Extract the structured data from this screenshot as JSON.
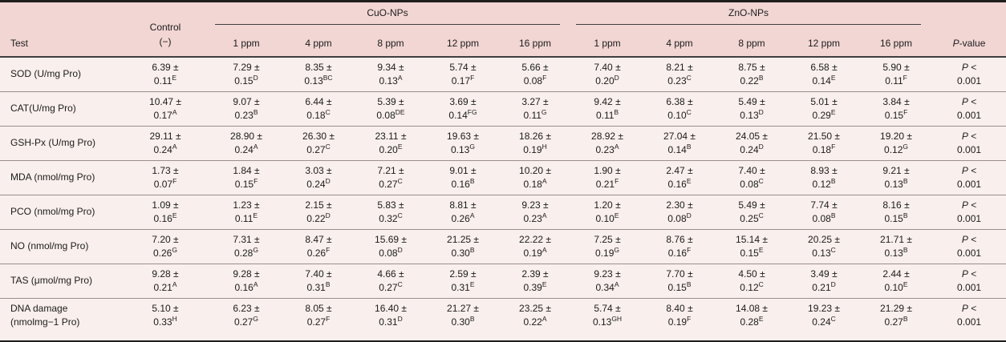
{
  "colors": {
    "header_bg": "#f1d6d3",
    "body_bg": "#f9efec",
    "rule_dark": "#1e1e1e",
    "rule_mid": "#3f3f3f",
    "rule_light": "#9a8f8d"
  },
  "table": {
    "header": {
      "test": "Test",
      "control_line1": "Control",
      "control_line2": "(−)",
      "groups": [
        {
          "label": "CuO-NPs",
          "cols": [
            "1 ppm",
            "4 ppm",
            "8 ppm",
            "12 ppm",
            "16 ppm"
          ]
        },
        {
          "label": "ZnO-NPs",
          "cols": [
            "1 ppm",
            "4 ppm",
            "8 ppm",
            "12 ppm",
            "16 ppm"
          ]
        }
      ],
      "pvalue": {
        "p": "P",
        "rest": "-value"
      }
    },
    "plus_minus": "±",
    "p_cell": {
      "p": "P",
      "lt": " <",
      "value": "0.001"
    },
    "rows": [
      {
        "label": "SOD (U/mg Pro)",
        "label2": "",
        "cells": [
          [
            "6.39",
            "0.11",
            "E"
          ],
          [
            "7.29",
            "0.15",
            "D"
          ],
          [
            "8.35",
            "0.13",
            "BC"
          ],
          [
            "9.34",
            "0.13",
            "A"
          ],
          [
            "5.74",
            "0.17",
            "F"
          ],
          [
            "5.66",
            "0.08",
            "F"
          ],
          [
            "7.40",
            "0.20",
            "D"
          ],
          [
            "8.21",
            "0.23",
            "C"
          ],
          [
            "8.75",
            "0.22",
            "B"
          ],
          [
            "6.58",
            "0.14",
            "E"
          ],
          [
            "5.90",
            "0.11",
            "F"
          ]
        ]
      },
      {
        "label": "CAT(U/mg Pro)",
        "label2": "",
        "cells": [
          [
            "10.47",
            "0.17",
            "A"
          ],
          [
            "9.07",
            "0.23",
            "B"
          ],
          [
            "6.44",
            "0.18",
            "C"
          ],
          [
            "5.39",
            "0.08",
            "DE"
          ],
          [
            "3.69",
            "0.14",
            "FG"
          ],
          [
            "3.27",
            "0.11",
            "G"
          ],
          [
            "9.42",
            "0.11",
            "B"
          ],
          [
            "6.38",
            "0.10",
            "C"
          ],
          [
            "5.49",
            "0.13",
            "D"
          ],
          [
            "5.01",
            "0.29",
            "E"
          ],
          [
            "3.84",
            "0.15",
            "F"
          ]
        ]
      },
      {
        "label": "GSH-Px (U/mg Pro)",
        "label2": "",
        "cells": [
          [
            "29.11",
            "0.24",
            "A"
          ],
          [
            "28.90",
            "0.24",
            "A"
          ],
          [
            "26.30",
            "0.27",
            "C"
          ],
          [
            "23.11",
            "0.20",
            "E"
          ],
          [
            "19.63",
            "0.13",
            "G"
          ],
          [
            "18.26",
            "0.19",
            "H"
          ],
          [
            "28.92",
            "0.23",
            "A"
          ],
          [
            "27.04",
            "0.14",
            "B"
          ],
          [
            "24.05",
            "0.24",
            "D"
          ],
          [
            "21.50",
            "0.18",
            "F"
          ],
          [
            "19.20",
            "0.12",
            "G"
          ]
        ]
      },
      {
        "label": "MDA (nmol/mg Pro)",
        "label2": "",
        "cells": [
          [
            "1.73",
            "0.07",
            "F"
          ],
          [
            "1.84",
            "0.15",
            "F"
          ],
          [
            "3.03",
            "0.24",
            "D"
          ],
          [
            "7.21",
            "0.27",
            "C"
          ],
          [
            "9.01",
            "0.16",
            "B"
          ],
          [
            "10.20",
            "0.18",
            "A"
          ],
          [
            "1.90",
            "0.21",
            "F"
          ],
          [
            "2.47",
            "0.16",
            "E"
          ],
          [
            "7.40",
            "0.08",
            "C"
          ],
          [
            "8.93",
            "0.12",
            "B"
          ],
          [
            "9.21",
            "0.13",
            "B"
          ]
        ]
      },
      {
        "label": "PCO (nmol/mg Pro)",
        "label2": "",
        "cells": [
          [
            "1.09",
            "0.16",
            "E"
          ],
          [
            "1.23",
            "0.11",
            "E"
          ],
          [
            "2.15",
            "0.22",
            "D"
          ],
          [
            "5.83",
            "0.32",
            "C"
          ],
          [
            "8.81",
            "0.26",
            "A"
          ],
          [
            "9.23",
            "0.23",
            "A"
          ],
          [
            "1.20",
            "0.10",
            "E"
          ],
          [
            "2.30",
            "0.08",
            "D"
          ],
          [
            "5.49",
            "0.25",
            "C"
          ],
          [
            "7.74",
            "0.08",
            "B"
          ],
          [
            "8.16",
            "0.15",
            "B"
          ]
        ]
      },
      {
        "label": "NO (nmol/mg Pro)",
        "label2": "",
        "cells": [
          [
            "7.20",
            "0.26",
            "G"
          ],
          [
            "7.31",
            "0.28",
            "G"
          ],
          [
            "8.47",
            "0.26",
            "F"
          ],
          [
            "15.69",
            "0.08",
            "D"
          ],
          [
            "21.25",
            "0.30",
            "B"
          ],
          [
            "22.22",
            "0.19",
            "A"
          ],
          [
            "7.25",
            "0.19",
            "G"
          ],
          [
            "8.76",
            "0.16",
            "F"
          ],
          [
            "15.14",
            "0.15",
            "E"
          ],
          [
            "20.25",
            "0.13",
            "C"
          ],
          [
            "21.71",
            "0.13",
            "B"
          ]
        ]
      },
      {
        "label": "TAS (μmol/mg Pro)",
        "label2": "",
        "cells": [
          [
            "9.28",
            "0.21",
            "A"
          ],
          [
            "9.28",
            "0.16",
            "A"
          ],
          [
            "7.40",
            "0.31",
            "B"
          ],
          [
            "4.66",
            "0.27",
            "C"
          ],
          [
            "2.59",
            "0.31",
            "E"
          ],
          [
            "2.39",
            "0.39",
            "E"
          ],
          [
            "9.23",
            "0.34",
            "A"
          ],
          [
            "7.70",
            "0.15",
            "B"
          ],
          [
            "4.50",
            "0.12",
            "C"
          ],
          [
            "3.49",
            "0.21",
            "D"
          ],
          [
            "2.44",
            "0.10",
            "E"
          ]
        ]
      },
      {
        "label": "DNA damage",
        "label2": "(nmolmg−1 Pro)",
        "cells": [
          [
            "5.10",
            "0.33",
            "H"
          ],
          [
            "6.23",
            "0.27",
            "G"
          ],
          [
            "8.05",
            "0.27",
            "F"
          ],
          [
            "16.40",
            "0.31",
            "D"
          ],
          [
            "21.27",
            "0.30",
            "B"
          ],
          [
            "23.25",
            "0.22",
            "A"
          ],
          [
            "5.74",
            "0.13",
            "GH"
          ],
          [
            "8.40",
            "0.19",
            "F"
          ],
          [
            "14.08",
            "0.28",
            "E"
          ],
          [
            "19.23",
            "0.24",
            "C"
          ],
          [
            "21.29",
            "0.27",
            "B"
          ]
        ]
      }
    ]
  }
}
